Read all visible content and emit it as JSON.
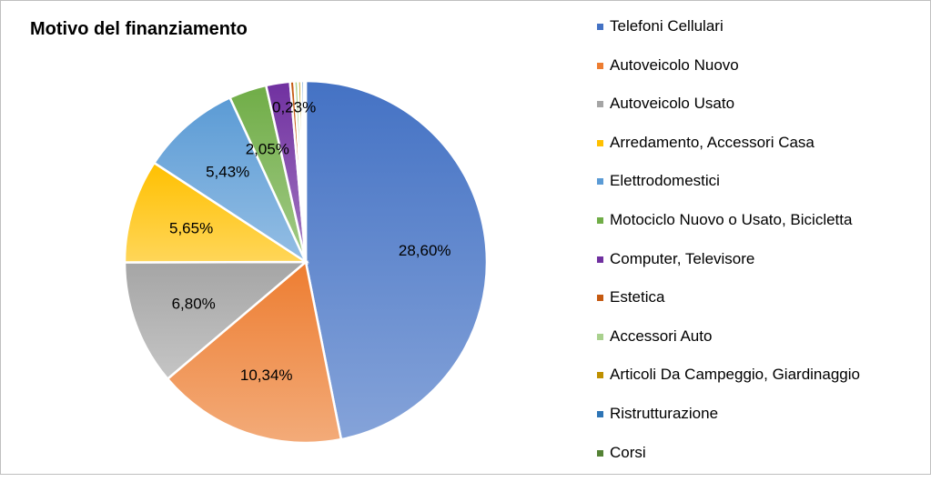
{
  "chart_data": {
    "type": "pie",
    "title": "Motivo del finanziamento",
    "legend_position": "right",
    "categories": [
      "Telefoni Cellulari",
      "Autoveicolo Nuovo",
      "Autoveicolo Usato",
      "Arredamento, Accessori Casa",
      "Elettrodomestici",
      "Motociclo Nuovo o Usato, Bicicletta",
      "Computer, Televisore",
      "Estetica",
      "Accessori Auto",
      "Articoli Da Campeggio, Giardinaggio",
      "Ristrutturazione",
      "Corsi"
    ],
    "values": [
      28.6,
      10.34,
      6.8,
      5.65,
      5.43,
      2.05,
      1.3,
      0.23,
      0.2,
      0.17,
      0.15,
      0.1
    ],
    "data_labels": [
      "28,60%",
      "10,34%",
      "6,80%",
      "5,65%",
      "5,43%",
      "2,05%",
      "",
      "0,23%",
      "",
      "",
      "",
      ""
    ],
    "colors": [
      "#4472C4",
      "#ED7D31",
      "#A5A5A5",
      "#FFC000",
      "#5B9BD5",
      "#70AD47",
      "#7030A0",
      "#C55A11",
      "#A9D18E",
      "#BF9000",
      "#2E75B6",
      "#548235"
    ]
  }
}
